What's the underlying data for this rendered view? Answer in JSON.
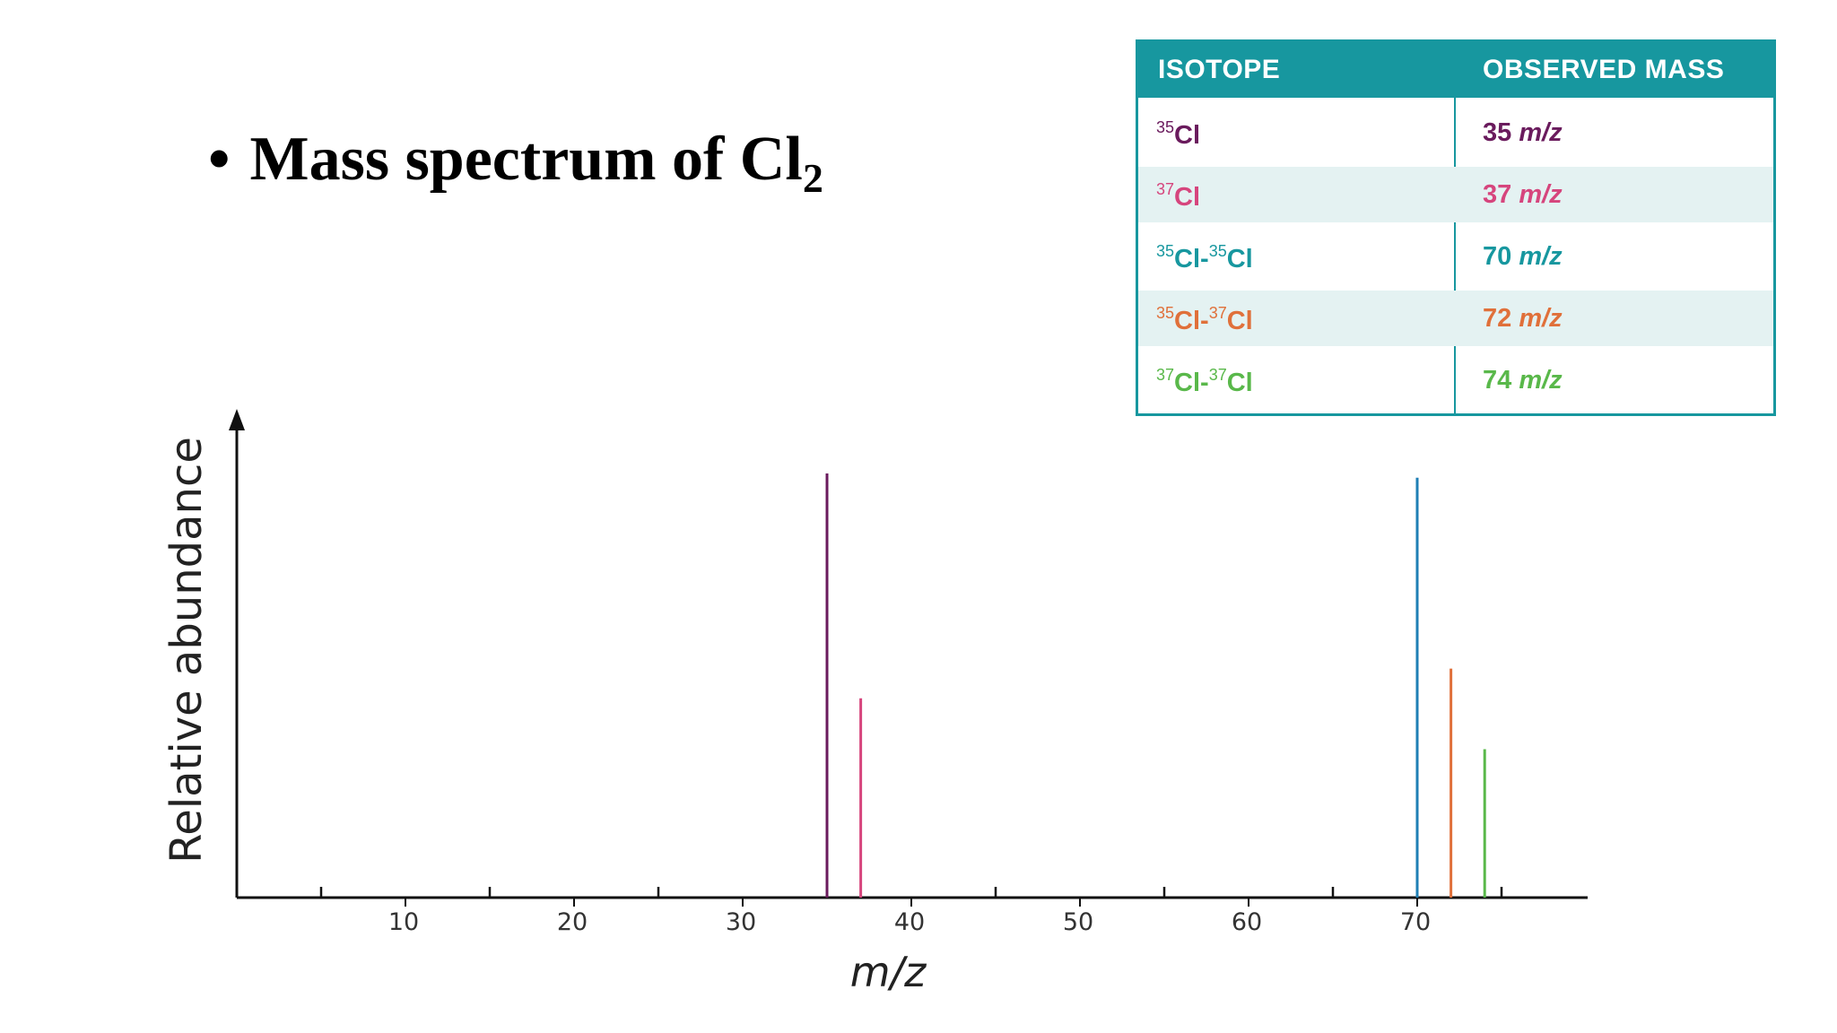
{
  "slide": {
    "bullet": "•",
    "title_text": "Mass spectrum of Cl",
    "title_subscript": "2"
  },
  "table": {
    "headers": [
      "ISOTOPE",
      "OBSERVED MASS"
    ],
    "rows": [
      {
        "isotope": [
          {
            "mass": "35",
            "sym": "Cl"
          }
        ],
        "mass_value": "35",
        "mass_unit": "m/z",
        "color": "#6a1b5d"
      },
      {
        "isotope": [
          {
            "mass": "37",
            "sym": "Cl"
          }
        ],
        "mass_value": "37",
        "mass_unit": "m/z",
        "color": "#d6457d"
      },
      {
        "isotope": [
          {
            "mass": "35",
            "sym": "Cl-"
          },
          {
            "mass": "35",
            "sym": "Cl"
          }
        ],
        "mass_value": "70",
        "mass_unit": "m/z",
        "color": "#17979f"
      },
      {
        "isotope": [
          {
            "mass": "35",
            "sym": "Cl-"
          },
          {
            "mass": "37",
            "sym": "Cl"
          }
        ],
        "mass_value": "72",
        "mass_unit": "m/z",
        "color": "#e0703a"
      },
      {
        "isotope": [
          {
            "mass": "37",
            "sym": "Cl-"
          },
          {
            "mass": "37",
            "sym": "Cl"
          }
        ],
        "mass_value": "74",
        "mass_unit": "m/z",
        "color": "#59b84a"
      }
    ]
  },
  "chart_data": {
    "type": "bar",
    "title": "",
    "xlabel": "m/z",
    "ylabel": "Relative abundance",
    "xlim": [
      0,
      80
    ],
    "ylim": [
      0,
      100
    ],
    "xticks": [
      10,
      20,
      30,
      40,
      50,
      60,
      70
    ],
    "grid": false,
    "peaks": [
      {
        "x": 35,
        "y": 100,
        "color": "#6a1b5d"
      },
      {
        "x": 37,
        "y": 47,
        "color": "#d6457d"
      },
      {
        "x": 70,
        "y": 99,
        "color": "#1f7fb5"
      },
      {
        "x": 72,
        "y": 54,
        "color": "#e0703a"
      },
      {
        "x": 74,
        "y": 35,
        "color": "#59b84a"
      }
    ]
  }
}
